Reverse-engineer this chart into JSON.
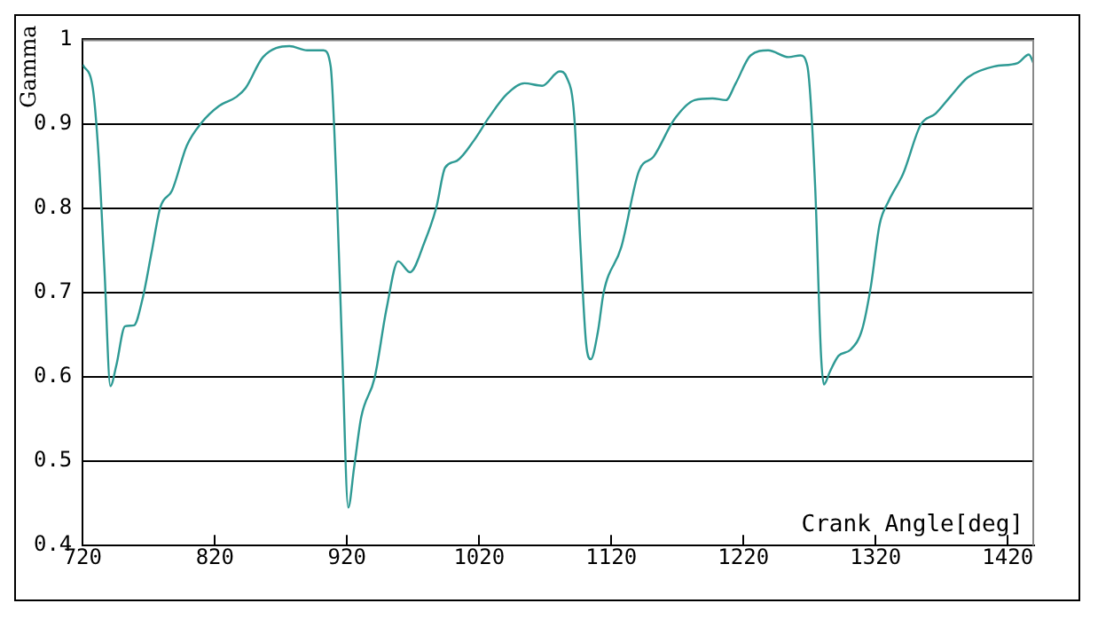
{
  "chart_data": {
    "type": "line",
    "ylabel": "Gamma",
    "xlabel": "Crank Angle[deg]",
    "xlim": [
      720,
      1440
    ],
    "xticks": [
      720,
      820,
      920,
      1020,
      1120,
      1220,
      1320,
      1420
    ],
    "ylim": [
      0.4,
      1
    ],
    "yticks": [
      0.4,
      0.5,
      0.6,
      0.7,
      0.8,
      0.9,
      1
    ],
    "grid": "y",
    "marker": "none",
    "line_style": "solid",
    "series": [
      {
        "color": "#2e9a94",
        "x": [
          720,
          727.6,
          732,
          736.4,
          740.9,
          745.3,
          752,
          758.7,
          765.3,
          772,
          778.7,
          787.6,
          798.7,
          809.8,
          823.1,
          836.4,
          843.1,
          856.4,
          876.4,
          889.8,
          902.2,
          907.6,
          912,
          916.4,
          920.9,
          925.3,
          930.7,
          940.9,
          949.8,
          958.7,
          967.6,
          978.7,
          987.6,
          994.2,
          1003.1,
          1016.4,
          1027.6,
          1040.9,
          1054.2,
          1067.6,
          1080.9,
          1086.2,
          1092,
          1096.5,
          1100.9,
          1104.5,
          1109.8,
          1114.2,
          1127.6,
          1140.9,
          1152,
          1167.6,
          1183.1,
          1196.5,
          1206.7,
          1214.2,
          1225.4,
          1238.7,
          1254.2,
          1263.1,
          1268.4,
          1274.2,
          1278.7,
          1280.9,
          1285.4,
          1292,
          1300.9,
          1309.8,
          1316.4,
          1323.1,
          1329.8,
          1340.9,
          1354.2,
          1365.4,
          1376.5,
          1389.8,
          1409.8,
          1427.6,
          1436,
          1440
        ],
        "values": [
          0.97,
          0.942,
          0.861,
          0.727,
          0.589,
          0.613,
          0.66,
          0.661,
          0.693,
          0.747,
          0.801,
          0.821,
          0.874,
          0.901,
          0.921,
          0.932,
          0.942,
          0.979,
          0.992,
          0.987,
          0.987,
          0.968,
          0.828,
          0.626,
          0.445,
          0.492,
          0.552,
          0.599,
          0.68,
          0.737,
          0.724,
          0.76,
          0.801,
          0.848,
          0.856,
          0.881,
          0.908,
          0.935,
          0.948,
          0.945,
          0.962,
          0.955,
          0.908,
          0.76,
          0.64,
          0.621,
          0.653,
          0.7,
          0.754,
          0.844,
          0.861,
          0.905,
          0.928,
          0.93,
          0.928,
          0.948,
          0.981,
          0.987,
          0.979,
          0.981,
          0.968,
          0.828,
          0.626,
          0.591,
          0.606,
          0.625,
          0.632,
          0.656,
          0.707,
          0.781,
          0.808,
          0.841,
          0.899,
          0.912,
          0.932,
          0.955,
          0.968,
          0.972,
          0.982,
          0.97
        ]
      }
    ]
  }
}
